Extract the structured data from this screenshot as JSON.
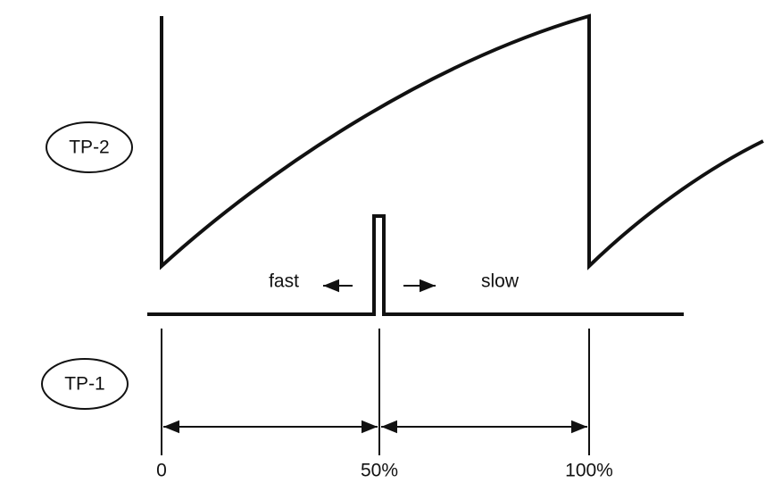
{
  "signals": [
    {
      "label": "TP-2"
    },
    {
      "label": "TP-1"
    }
  ],
  "annotations": {
    "fast": "fast",
    "slow": "slow"
  },
  "scale": [
    "0",
    "50%",
    "100%"
  ]
}
